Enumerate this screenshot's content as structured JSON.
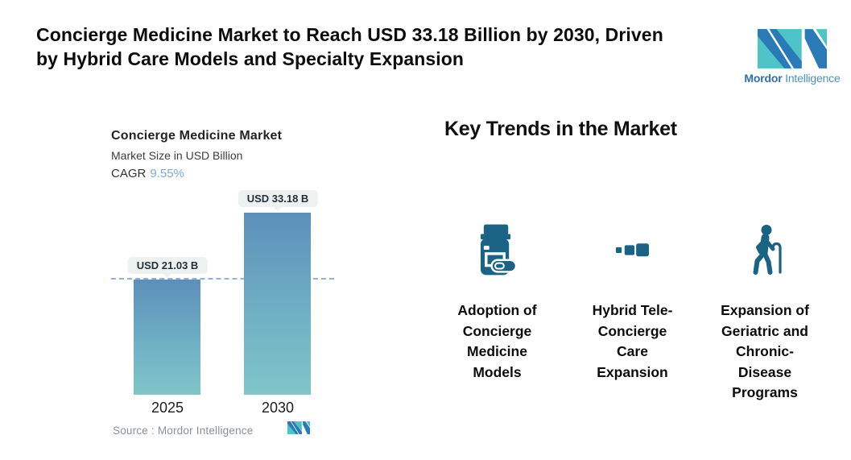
{
  "header": {
    "title_lines": [
      "Concierge Medicine Market to Reach USD 33.18 Billion by 2030, Driven",
      "by Hybrid Care Models and Specialty Expansion"
    ],
    "brand": {
      "name_bold": "Mordor",
      "name_light": "Intelligence"
    }
  },
  "chart": {
    "title": "Concierge Medicine Market",
    "subtitle": "Market Size in USD Billion",
    "cagr_label": "CAGR",
    "cagr_value": "9.55%",
    "source": "Source :  Mordor Intelligence"
  },
  "chart_data": {
    "type": "bar",
    "title": "Concierge Medicine Market",
    "ylabel": "Market Size in USD Billion",
    "cagr_pct": 9.55,
    "categories": [
      "2025",
      "2030"
    ],
    "values": [
      21.03,
      33.18
    ],
    "bar_labels": [
      "USD 21.03 B",
      "USD 33.18 B"
    ],
    "reference_line": 21.03,
    "ylim": [
      0,
      33.18
    ],
    "grid": false,
    "legend": false
  },
  "trends": {
    "heading": "Key Trends in the Market",
    "items": [
      {
        "icon": "pill-bottle-icon",
        "label_lines": [
          "Adoption of",
          "Concierge",
          "Medicine",
          "Models"
        ]
      },
      {
        "icon": "tele-squares-icon",
        "label_lines": [
          "Hybrid Tele-",
          "Concierge",
          "Care",
          "Expansion"
        ]
      },
      {
        "icon": "elderly-person-cane-icon",
        "label_lines": [
          "Expansion of",
          "Geriatric and",
          "Chronic-",
          "Disease",
          "Programs"
        ]
      }
    ]
  },
  "colors": {
    "bar_gradient_top": "#5c8fba",
    "bar_gradient_bottom": "#7fc5c9",
    "dashed_line": "#8fb2d6",
    "badge_bg": "#edf2f1",
    "cagr_accent": "#7aa9dc",
    "trend_icon": "#1a6385",
    "brand_teal": "#4ec4c9",
    "brand_blue": "#2b7ab8",
    "source_text": "#8b9199"
  }
}
